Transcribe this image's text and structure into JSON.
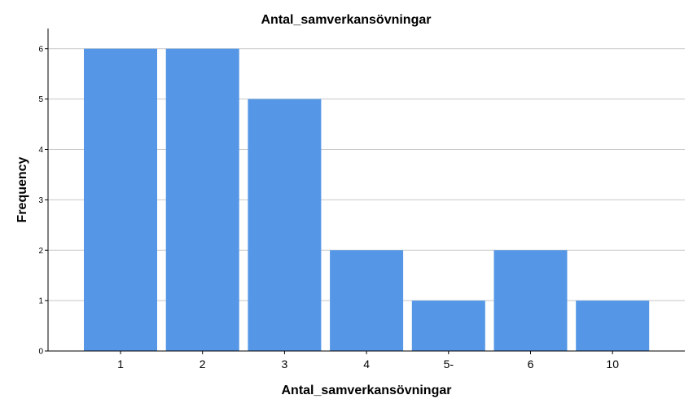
{
  "chart_data": {
    "type": "bar",
    "title": "Antal_samverkansövningar",
    "xlabel": "Antal_samverkansövningar",
    "ylabel": "Frequency",
    "categories": [
      "1",
      "2",
      "3",
      "4",
      "5-",
      "6",
      "10"
    ],
    "values": [
      6,
      6,
      5,
      2,
      1,
      2,
      1
    ],
    "ylim": [
      0,
      6.4
    ],
    "yticks": [
      "0",
      "1",
      "2",
      "3",
      "4",
      "5",
      "6"
    ],
    "grid": true,
    "bar_color": "#5597e6"
  }
}
